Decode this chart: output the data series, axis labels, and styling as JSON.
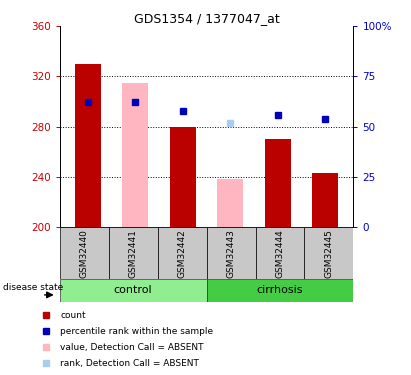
{
  "title": "GDS1354 / 1377047_at",
  "samples": [
    "GSM32440",
    "GSM32441",
    "GSM32442",
    "GSM32443",
    "GSM32444",
    "GSM32445"
  ],
  "ylim_left": [
    200,
    360
  ],
  "ylim_right": [
    0,
    100
  ],
  "yticks_left": [
    200,
    240,
    280,
    320,
    360
  ],
  "yticks_right": [
    0,
    25,
    50,
    75,
    100
  ],
  "red_bars": {
    "GSM32440": 330,
    "GSM32442": 280,
    "GSM32444": 270,
    "GSM32445": 243
  },
  "pink_bars": {
    "GSM32441": 315,
    "GSM32443": 238
  },
  "blue_squares": {
    "GSM32440": 62,
    "GSM32441": 62,
    "GSM32442": 58,
    "GSM32444": 56,
    "GSM32445": 54
  },
  "light_blue_squares": {
    "GSM32443": 52
  },
  "bar_width": 0.55,
  "red_color": "#BB0000",
  "pink_color": "#FFB6C1",
  "blue_color": "#0000BB",
  "light_blue_color": "#AACCEE",
  "axis_color_left": "#CC0000",
  "axis_color_right": "#0000CC",
  "background_label": "#C8C8C8",
  "green_light": "#90EE90",
  "green_dark": "#44CC44",
  "title_fontsize": 9,
  "tick_fontsize": 7.5,
  "sample_fontsize": 6.5,
  "group_fontsize": 8,
  "legend_fontsize": 6.5
}
